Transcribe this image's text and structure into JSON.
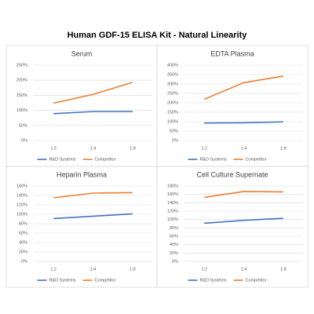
{
  "title": "Human GDF-15 ELISA Kit - Natural Linearity",
  "chart_data": [
    {
      "type": "line",
      "title": "Serum",
      "categories": [
        "1:2",
        "1:4",
        "1:8"
      ],
      "series": [
        {
          "name": "R&D Systems",
          "color": "#4472c4",
          "values": [
            89,
            96,
            96
          ]
        },
        {
          "name": "Competitor",
          "color": "#ed7d31",
          "values": [
            124,
            153,
            193
          ]
        }
      ],
      "ylim": [
        0,
        250
      ],
      "yticks": [
        {
          "value": 0,
          "label": "0%"
        },
        {
          "value": 50,
          "label": "50%"
        },
        {
          "value": 100,
          "label": "100%"
        },
        {
          "value": 150,
          "label": "150%"
        },
        {
          "value": 200,
          "label": "200%"
        },
        {
          "value": 250,
          "label": "250%"
        }
      ],
      "grid": true,
      "legend": "bottom"
    },
    {
      "type": "line",
      "title": "EDTA Plasma",
      "categories": [
        "1:2",
        "1:4",
        "1:8"
      ],
      "series": [
        {
          "name": "R&D Systems",
          "color": "#4472c4",
          "values": [
            93,
            94,
            99
          ]
        },
        {
          "name": "Competitor",
          "color": "#ed7d31",
          "values": [
            219,
            307,
            342
          ]
        }
      ],
      "ylim": [
        0,
        400
      ],
      "yticks": [
        {
          "value": 0,
          "label": "0%"
        },
        {
          "value": 50,
          "label": "50%"
        },
        {
          "value": 100,
          "label": "100%"
        },
        {
          "value": 150,
          "label": "150%"
        },
        {
          "value": 200,
          "label": "200%"
        },
        {
          "value": 250,
          "label": "250%"
        },
        {
          "value": 300,
          "label": "300%"
        },
        {
          "value": 350,
          "label": "350%"
        },
        {
          "value": 400,
          "label": "400%"
        }
      ],
      "grid": true,
      "legend": "bottom"
    },
    {
      "type": "line",
      "title": "Heparin Plasma",
      "categories": [
        "1:2",
        "1:4",
        "1:8"
      ],
      "series": [
        {
          "name": "R&D Systems",
          "color": "#4472c4",
          "values": [
            91,
            96,
            101
          ]
        },
        {
          "name": "Competitor",
          "color": "#ed7d31",
          "values": [
            135,
            145,
            146
          ]
        }
      ],
      "ylim": [
        0,
        160
      ],
      "yticks": [
        {
          "value": 0,
          "label": "0%"
        },
        {
          "value": 20,
          "label": "20%"
        },
        {
          "value": 40,
          "label": "40%"
        },
        {
          "value": 60,
          "label": "60%"
        },
        {
          "value": 80,
          "label": "80%"
        },
        {
          "value": 100,
          "label": "100%"
        },
        {
          "value": 120,
          "label": "120%"
        },
        {
          "value": 140,
          "label": "140%"
        },
        {
          "value": 160,
          "label": "160%"
        }
      ],
      "grid": true,
      "legend": "bottom"
    },
    {
      "type": "line",
      "title": "Cell Culture Supernate",
      "categories": [
        "1:2",
        "1:4",
        "1:8"
      ],
      "series": [
        {
          "name": "R&D Systems",
          "color": "#4472c4",
          "values": [
            91,
            98,
            103
          ]
        },
        {
          "name": "Competitor",
          "color": "#ed7d31",
          "values": [
            153,
            167,
            166
          ]
        }
      ],
      "ylim": [
        0,
        180
      ],
      "yticks": [
        {
          "value": 0,
          "label": "0%"
        },
        {
          "value": 20,
          "label": "20%"
        },
        {
          "value": 40,
          "label": "40%"
        },
        {
          "value": 60,
          "label": "60%"
        },
        {
          "value": 80,
          "label": "80%"
        },
        {
          "value": 100,
          "label": "100%"
        },
        {
          "value": 120,
          "label": "120%"
        },
        {
          "value": 140,
          "label": "140%"
        },
        {
          "value": 160,
          "label": "160%"
        },
        {
          "value": 180,
          "label": "180%"
        }
      ],
      "grid": true,
      "legend": "bottom"
    }
  ]
}
